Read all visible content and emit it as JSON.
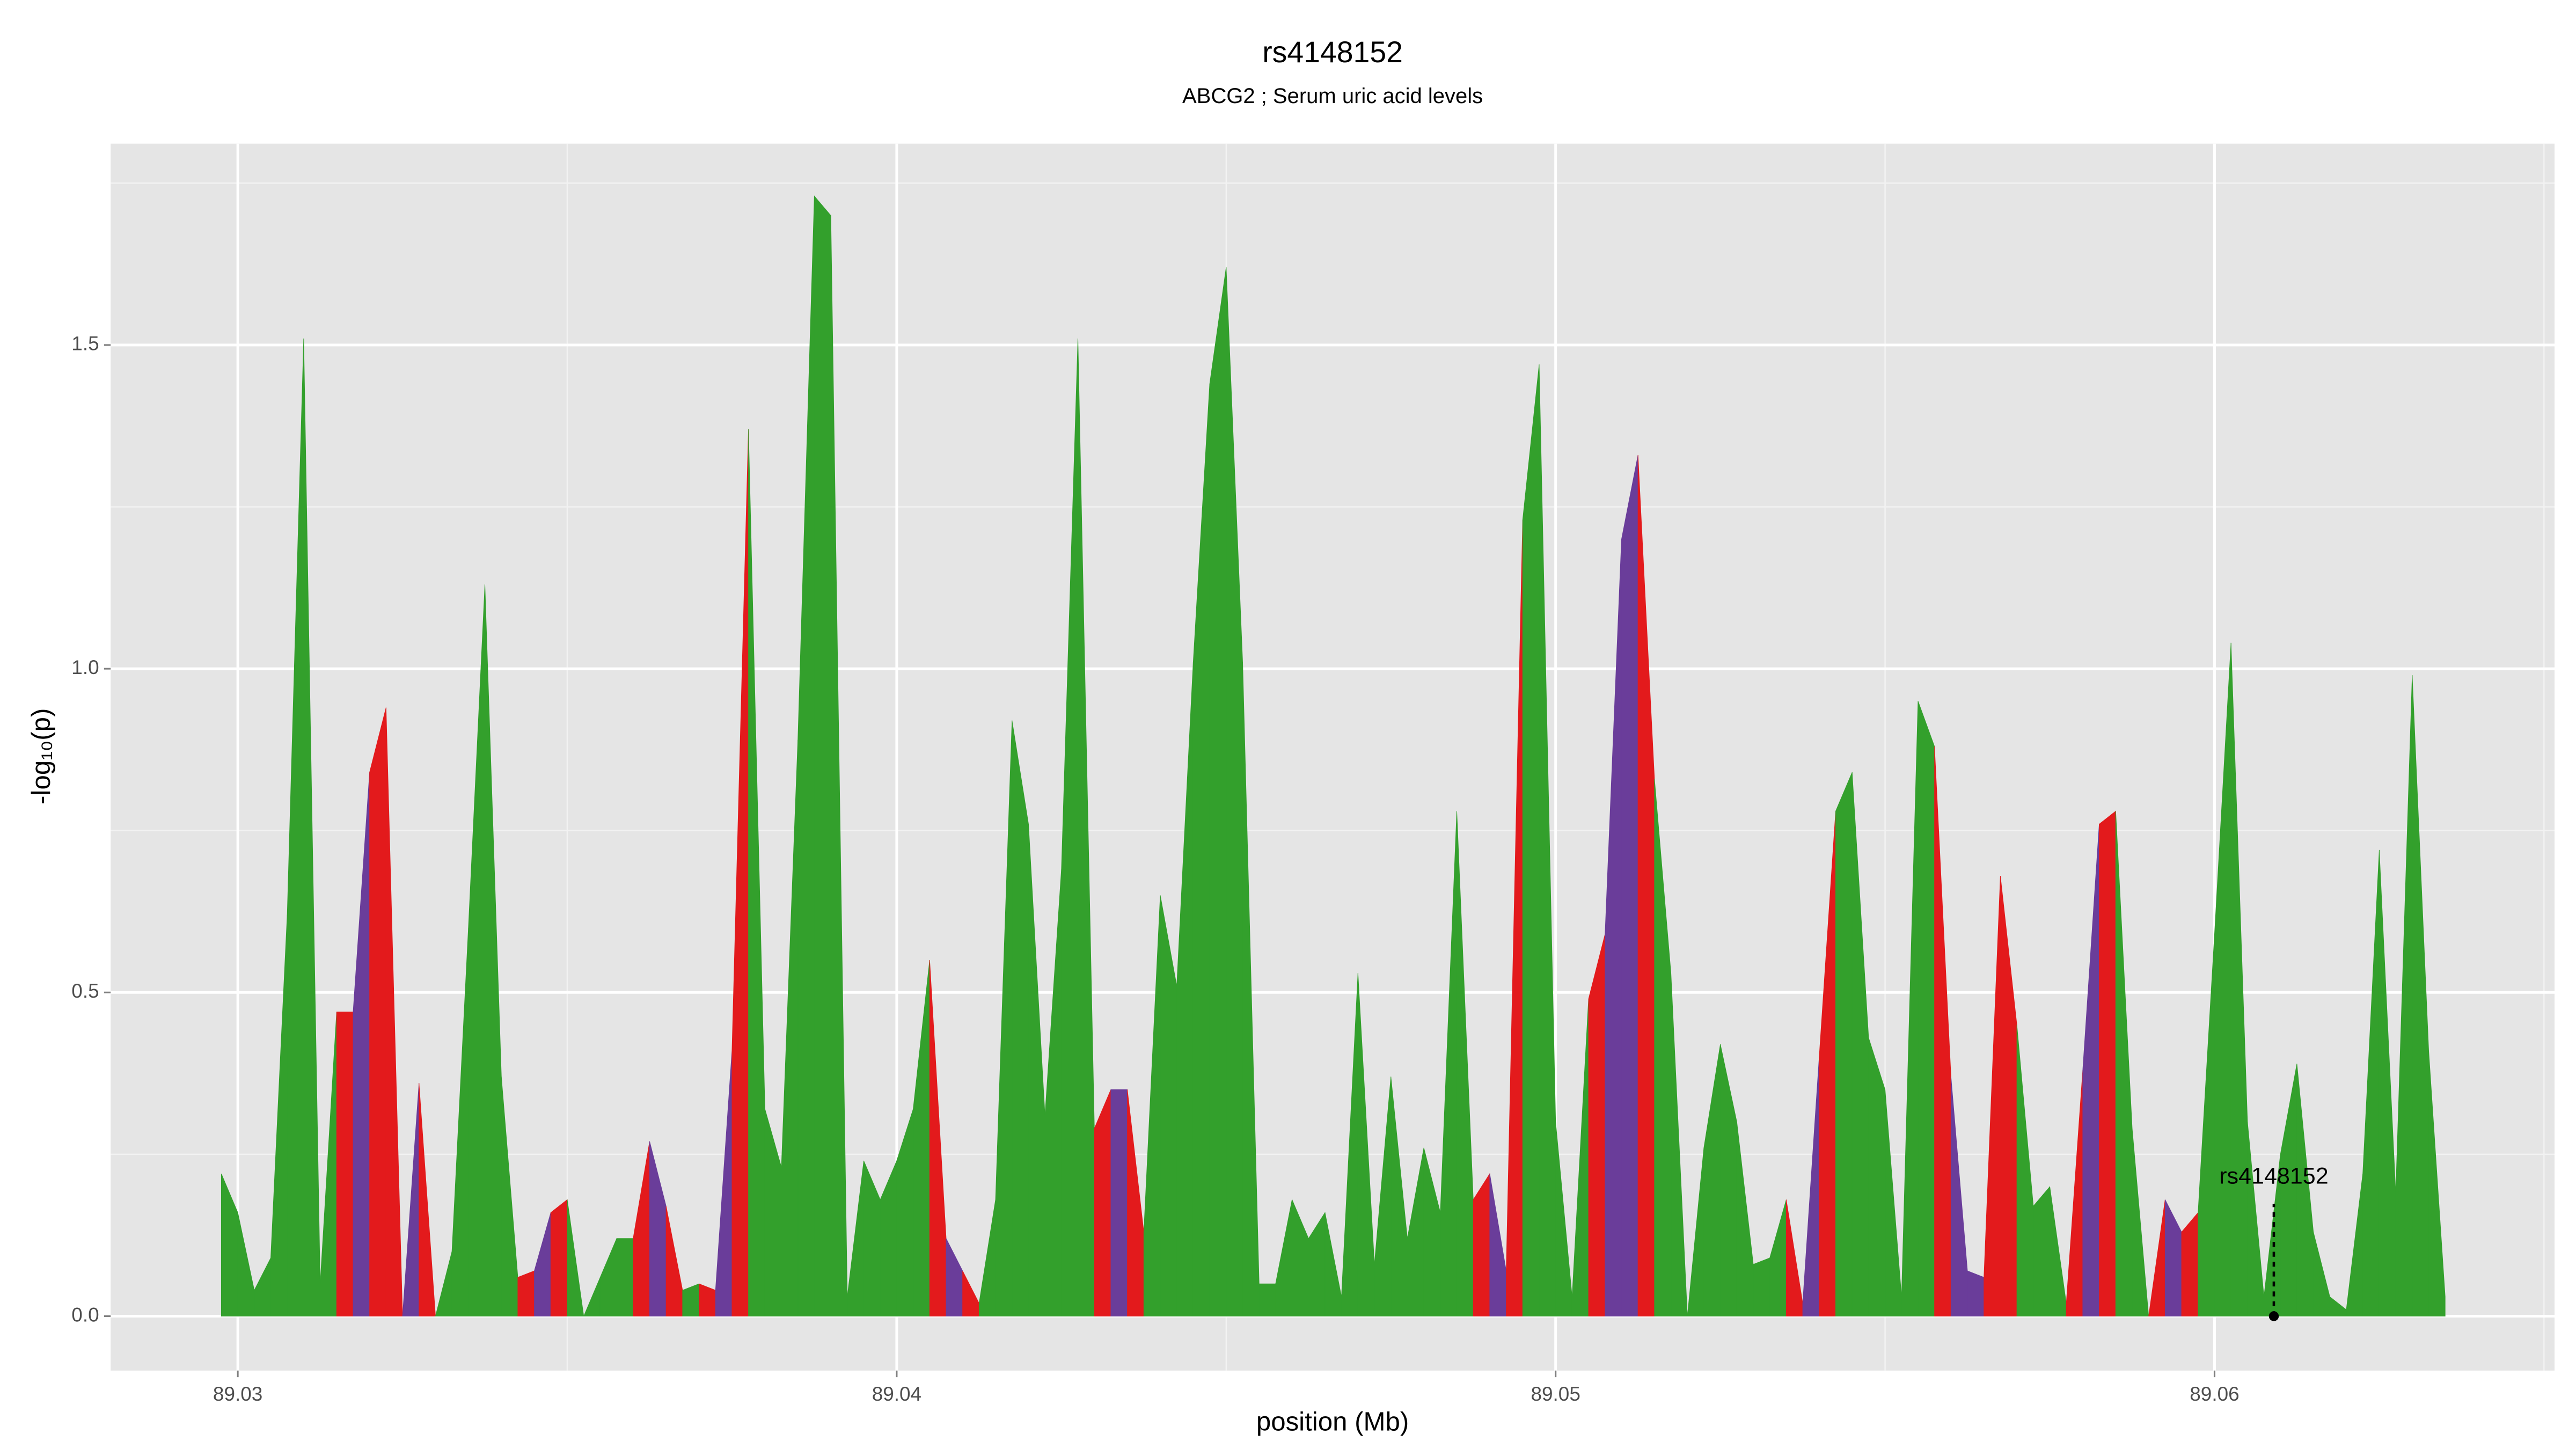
{
  "chart_data": {
    "type": "area",
    "title": "rs4148152",
    "subtitle": "ABCG2 ; Serum uric acid levels",
    "xlabel": "position (Mb)",
    "ylabel": "-log₁₀(p)",
    "xlim": [
      89.02807,
      89.06516
    ],
    "ylim": [
      -0.084,
      1.811
    ],
    "xticks": [
      89.03,
      89.04,
      89.05,
      89.06
    ],
    "yticks": [
      {
        "value": 0,
        "label": "0.0"
      },
      0.5,
      {
        "value": 1,
        "label": "1.0"
      },
      1.5
    ],
    "xminor": [
      89.035,
      89.045,
      89.055,
      89.065
    ],
    "yminor": [
      0.25,
      0.75,
      1.25,
      1.75
    ],
    "grid": true,
    "x": [
      89.02975,
      89.03,
      89.03025,
      89.0305,
      89.03075,
      89.031,
      89.03125,
      89.0315,
      89.03175,
      89.032,
      89.03225,
      89.0325,
      89.03275,
      89.033,
      89.03325,
      89.0335,
      89.03375,
      89.034,
      89.03425,
      89.0345,
      89.03475,
      89.035,
      89.03525,
      89.0355,
      89.03575,
      89.036,
      89.03625,
      89.0365,
      89.03675,
      89.037,
      89.03725,
      89.0375,
      89.03775,
      89.038,
      89.03825,
      89.0385,
      89.03875,
      89.039,
      89.03925,
      89.0395,
      89.03975,
      89.04,
      89.04025,
      89.0405,
      89.04075,
      89.041,
      89.04125,
      89.0415,
      89.04175,
      89.042,
      89.04225,
      89.0425,
      89.04275,
      89.043,
      89.04325,
      89.0435,
      89.04375,
      89.044,
      89.04425,
      89.0445,
      89.04475,
      89.045,
      89.04525,
      89.0455,
      89.04575,
      89.046,
      89.04625,
      89.0465,
      89.04675,
      89.047,
      89.04725,
      89.0475,
      89.04775,
      89.048,
      89.04825,
      89.0485,
      89.04875,
      89.049,
      89.04925,
      89.0495,
      89.04975,
      89.05,
      89.05025,
      89.0505,
      89.05075,
      89.051,
      89.05125,
      89.0515,
      89.05175,
      89.052,
      89.05225,
      89.0525,
      89.05275,
      89.053,
      89.05325,
      89.0535,
      89.05375,
      89.054,
      89.05425,
      89.0545,
      89.05475,
      89.055,
      89.05525,
      89.0555,
      89.05575,
      89.056,
      89.05625,
      89.0565,
      89.05675,
      89.057,
      89.05725,
      89.0575,
      89.05775,
      89.058,
      89.05825,
      89.0585,
      89.05875,
      89.059,
      89.05925,
      89.0595,
      89.05975,
      89.06,
      89.06025,
      89.0605,
      89.06075,
      89.061,
      89.06125,
      89.0615,
      89.06175,
      89.062,
      89.06225,
      89.0625,
      89.06275,
      89.063,
      89.06325,
      89.0635
    ],
    "values": [
      0.22,
      0.16,
      0.04,
      0.09,
      0.62,
      1.51,
      0.05,
      0.47,
      0.47,
      0.84,
      0.94,
      0,
      0.36,
      0,
      0.1,
      0.6,
      1.13,
      0.37,
      0.06,
      0.07,
      0.16,
      0.18,
      0,
      0.06,
      0.12,
      0.12,
      0.27,
      0.17,
      0.04,
      0.05,
      0.04,
      0.41,
      1.37,
      0.32,
      0.23,
      0.89,
      1.73,
      1.7,
      0.03,
      0.24,
      0.18,
      0.24,
      0.32,
      0.55,
      0.12,
      0.07,
      0.02,
      0.18,
      0.92,
      0.76,
      0.31,
      0.69,
      1.51,
      0.29,
      0.35,
      0.35,
      0.13,
      0.65,
      0.51,
      1.01,
      1.44,
      1.62,
      1.01,
      0.05,
      0.05,
      0.18,
      0.12,
      0.16,
      0.03,
      0.53,
      0.08,
      0.37,
      0.12,
      0.26,
      0.16,
      0.78,
      0.18,
      0.22,
      0.07,
      1.23,
      1.47,
      0.3,
      0.03,
      0.49,
      0.59,
      1.2,
      1.33,
      0.83,
      0.53,
      0,
      0.26,
      0.42,
      0.3,
      0.08,
      0.09,
      0.18,
      0.02,
      0.4,
      0.78,
      0.84,
      0.43,
      0.35,
      0.03,
      0.95,
      0.88,
      0.37,
      0.07,
      0.06,
      0.68,
      0.45,
      0.17,
      0.2,
      0.02,
      0.38,
      0.76,
      0.78,
      0.29,
      0,
      0.18,
      0.13,
      0.16,
      0.59,
      1.04,
      0.3,
      0.03,
      0.25,
      0.39,
      0.13,
      0.03,
      0.01,
      0.22,
      0.72,
      0.19,
      0.99,
      0.41,
      0.03
    ],
    "segment_colors": [
      "#33a02c",
      "#33a02c",
      "#33a02c",
      "#33a02c",
      "#33a02c",
      "#33a02c",
      "#33a02c",
      "#e31a1c",
      "#6a3d9a",
      "#e31a1c",
      "#e31a1c",
      "#6a3d9a",
      "#e31a1c",
      "#33a02c",
      "#33a02c",
      "#33a02c",
      "#33a02c",
      "#33a02c",
      "#e31a1c",
      "#6a3d9a",
      "#e31a1c",
      "#33a02c",
      "#33a02c",
      "#33a02c",
      "#33a02c",
      "#e31a1c",
      "#6a3d9a",
      "#e31a1c",
      "#33a02c",
      "#e31a1c",
      "#6a3d9a",
      "#e31a1c",
      "#33a02c",
      "#33a02c",
      "#33a02c",
      "#33a02c",
      "#33a02c",
      "#33a02c",
      "#33a02c",
      "#33a02c",
      "#33a02c",
      "#33a02c",
      "#33a02c",
      "#e31a1c",
      "#6a3d9a",
      "#e31a1c",
      "#33a02c",
      "#33a02c",
      "#33a02c",
      "#33a02c",
      "#33a02c",
      "#33a02c",
      "#33a02c",
      "#e31a1c",
      "#6a3d9a",
      "#e31a1c",
      "#33a02c",
      "#33a02c",
      "#33a02c",
      "#33a02c",
      "#33a02c",
      "#33a02c",
      "#33a02c",
      "#33a02c",
      "#33a02c",
      "#33a02c",
      "#33a02c",
      "#33a02c",
      "#33a02c",
      "#33a02c",
      "#33a02c",
      "#33a02c",
      "#33a02c",
      "#33a02c",
      "#33a02c",
      "#33a02c",
      "#e31a1c",
      "#6a3d9a",
      "#e31a1c",
      "#33a02c",
      "#33a02c",
      "#33a02c",
      "#33a02c",
      "#e31a1c",
      "#6a3d9a",
      "#6a3d9a",
      "#e31a1c",
      "#33a02c",
      "#33a02c",
      "#33a02c",
      "#33a02c",
      "#33a02c",
      "#33a02c",
      "#33a02c",
      "#33a02c",
      "#e31a1c",
      "#6a3d9a",
      "#e31a1c",
      "#33a02c",
      "#33a02c",
      "#33a02c",
      "#33a02c",
      "#33a02c",
      "#33a02c",
      "#e31a1c",
      "#6a3d9a",
      "#6a3d9a",
      "#e31a1c",
      "#e31a1c",
      "#33a02c",
      "#33a02c",
      "#33a02c",
      "#e31a1c",
      "#6a3d9a",
      "#e31a1c",
      "#33a02c",
      "#33a02c",
      "#e31a1c",
      "#6a3d9a",
      "#e31a1c",
      "#33a02c",
      "#33a02c",
      "#33a02c",
      "#33a02c",
      "#33a02c",
      "#33a02c",
      "#33a02c",
      "#33a02c",
      "#33a02c",
      "#33a02c",
      "#33a02c",
      "#33a02c",
      "#33a02c",
      "#33a02c",
      "#33a02c"
    ],
    "annotation": {
      "text": "rs4148152",
      "x": 89.0609,
      "y": 0
    }
  }
}
